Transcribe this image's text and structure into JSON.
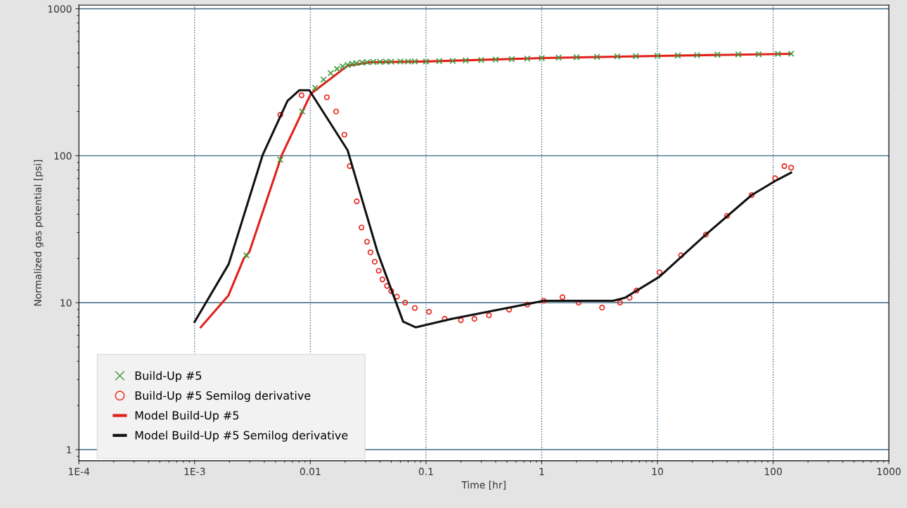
{
  "chart_data": {
    "type": "line",
    "xlabel": "Time [hr]",
    "ylabel": "Normalized gas potential [psi]",
    "log": "xy",
    "grid": true,
    "legend": "bottom left",
    "xlim": [
      0.0001,
      1000
    ],
    "ylim": [
      0.84,
      1060
    ],
    "xticks": [
      {
        "value": 0.0001,
        "label": "1E-4"
      },
      {
        "value": 0.001,
        "label": "1E-3"
      },
      0.01,
      0.1,
      1,
      10,
      100,
      1000
    ],
    "yticks": [
      1,
      10,
      100,
      1000
    ],
    "series": [
      {
        "name": "Build-Up #5",
        "type": "scatter",
        "marker": "cross",
        "color": "#3c9a3c",
        "x": [
          0.0028,
          0.0055,
          0.0085,
          0.011,
          0.013,
          0.015,
          0.017,
          0.019,
          0.021,
          0.023,
          0.025,
          0.028,
          0.031,
          0.035,
          0.04,
          0.045,
          0.05,
          0.06,
          0.07,
          0.08,
          0.1,
          0.13,
          0.17,
          0.22,
          0.3,
          0.4,
          0.55,
          0.75,
          1,
          1.4,
          2,
          3,
          4.5,
          6.5,
          10,
          15,
          22,
          33,
          50,
          75,
          110,
          143
        ],
        "values": [
          21,
          94,
          200,
          290,
          330,
          365,
          390,
          405,
          415,
          422,
          427,
          431,
          433,
          435,
          436,
          437,
          437,
          438,
          438,
          438,
          438,
          440,
          442,
          445,
          448,
          451,
          454,
          458,
          462,
          465,
          468,
          471,
          474,
          476,
          478,
          481,
          484,
          487,
          489,
          491,
          493,
          494
        ]
      },
      {
        "name": "Build-Up #5 Semilog derivative",
        "type": "scatter",
        "marker": "circle",
        "color": "#e8261f",
        "x": [
          0.0055,
          0.0084,
          0.0139,
          0.0167,
          0.0197,
          0.0219,
          0.0252,
          0.0277,
          0.0309,
          0.0331,
          0.036,
          0.039,
          0.042,
          0.046,
          0.05,
          0.056,
          0.066,
          0.08,
          0.106,
          0.145,
          0.2,
          0.262,
          0.35,
          0.523,
          0.75,
          1.04,
          1.51,
          2.08,
          3.32,
          4.75,
          5.75,
          6.6,
          10.4,
          16,
          26.2,
          40,
          65.2,
          104,
          125,
          143
        ],
        "values": [
          190,
          258,
          250,
          200,
          139,
          85,
          49,
          32.5,
          26,
          22,
          19,
          16.5,
          14.4,
          13,
          12,
          11,
          10,
          9.2,
          8.67,
          7.76,
          7.6,
          7.76,
          8.2,
          8.96,
          9.7,
          10.3,
          10.9,
          10,
          9.26,
          10,
          10.8,
          12.1,
          16.1,
          21,
          29.1,
          39,
          54,
          70.3,
          85,
          83
        ]
      },
      {
        "name": "Model Build-Up #5",
        "marker": "none",
        "line_style": "solid",
        "color": "#e0201a",
        "x": [
          0.00113,
          0.00196,
          0.00266,
          0.00297,
          0.00567,
          0.0101,
          0.021,
          0.033,
          0.1,
          1,
          10,
          143
        ],
        "values": [
          6.8,
          11.2,
          20,
          22.1,
          101,
          264,
          410,
          433,
          438,
          462,
          478,
          494
        ]
      },
      {
        "name": "Model Build-Up #5 Semilog derivative",
        "marker": "none",
        "line_style": "solid",
        "color": "#111111",
        "x": [
          0.001,
          0.00197,
          0.00387,
          0.00635,
          0.00802,
          0.0098,
          0.021,
          0.0381,
          0.042,
          0.0634,
          0.0813,
          0.166,
          0.42,
          1.04,
          1.67,
          4.14,
          5.23,
          10.4,
          26.2,
          65.2,
          104,
          143
        ],
        "values": [
          7.4,
          18.3,
          101,
          236,
          279,
          279,
          109,
          22.1,
          17.9,
          7.43,
          6.8,
          7.76,
          8.96,
          10.3,
          10.3,
          10.3,
          10.8,
          15,
          29.1,
          54,
          67.3,
          76.8
        ]
      }
    ]
  }
}
